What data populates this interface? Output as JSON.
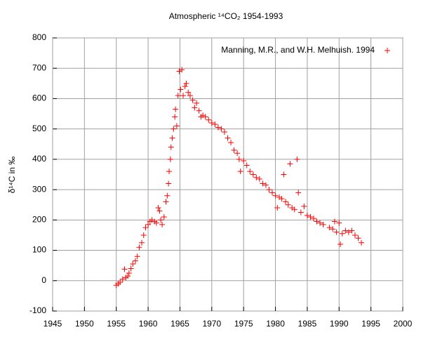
{
  "chart_data": {
    "type": "scatter",
    "title": "Atmospheric ¹⁴CO₂ 1954-1993",
    "y_label": "δ¹⁴C in ‰",
    "xlim": [
      1945,
      2000
    ],
    "xticks": [
      1945,
      1950,
      1955,
      1960,
      1965,
      1970,
      1975,
      1980,
      1985,
      1990,
      1995,
      2000
    ],
    "ylim": [
      -100,
      800
    ],
    "yticks": [
      -100,
      0,
      100,
      200,
      300,
      400,
      500,
      600,
      700,
      800
    ],
    "grid": true,
    "legend": "top-right",
    "series": [
      {
        "name": "Manning, M.R., and W.H. Melhuish. 1994",
        "color": "#ff0000",
        "x": [
          1955.0,
          1955.3,
          1955.6,
          1956.0,
          1956.3,
          1956.5,
          1956.8,
          1957.0,
          1957.3,
          1957.6,
          1958.0,
          1958.3,
          1958.6,
          1959.0,
          1959.3,
          1959.6,
          1960.0,
          1960.3,
          1960.6,
          1961.0,
          1961.3,
          1961.6,
          1961.8,
          1962.0,
          1962.2,
          1962.5,
          1962.8,
          1963.0,
          1963.2,
          1963.3,
          1963.5,
          1963.6,
          1963.8,
          1964.0,
          1964.2,
          1964.3,
          1964.5,
          1964.7,
          1964.9,
          1965.1,
          1965.3,
          1965.5,
          1965.8,
          1966.0,
          1966.3,
          1966.6,
          1967.0,
          1967.3,
          1967.6,
          1968.0,
          1968.3,
          1968.6,
          1969.0,
          1969.5,
          1970.0,
          1970.5,
          1971.0,
          1971.5,
          1972.0,
          1972.5,
          1973.0,
          1973.5,
          1974.0,
          1974.3,
          1974.5,
          1975.0,
          1975.5,
          1976.0,
          1976.5,
          1977.0,
          1977.5,
          1978.0,
          1978.5,
          1979.0,
          1979.5,
          1980.0,
          1980.3,
          1980.6,
          1981.0,
          1981.3,
          1981.6,
          1982.0,
          1982.3,
          1982.6,
          1983.0,
          1983.4,
          1983.6,
          1984.0,
          1984.5,
          1985.0,
          1985.5,
          1986.0,
          1986.5,
          1987.0,
          1987.5,
          1988.5,
          1989.0,
          1989.3,
          1989.6,
          1990.0,
          1990.2,
          1990.5,
          1991.0,
          1991.5,
          1992.0,
          1992.5,
          1993.0,
          1993.5
        ],
        "values": [
          -15,
          -10,
          -5,
          5,
          38,
          10,
          15,
          25,
          40,
          55,
          65,
          80,
          110,
          125,
          150,
          175,
          185,
          195,
          200,
          195,
          190,
          240,
          230,
          200,
          185,
          210,
          260,
          280,
          320,
          360,
          400,
          440,
          470,
          500,
          540,
          565,
          510,
          610,
          690,
          630,
          695,
          610,
          640,
          650,
          620,
          610,
          595,
          570,
          585,
          560,
          540,
          545,
          540,
          530,
          520,
          515,
          505,
          500,
          490,
          470,
          455,
          430,
          420,
          400,
          360,
          395,
          380,
          360,
          350,
          340,
          335,
          320,
          315,
          300,
          290,
          280,
          240,
          275,
          270,
          350,
          260,
          250,
          385,
          240,
          235,
          400,
          290,
          225,
          245,
          215,
          210,
          205,
          195,
          190,
          185,
          175,
          170,
          195,
          160,
          190,
          120,
          155,
          165,
          160,
          165,
          150,
          140,
          125
        ]
      }
    ]
  }
}
